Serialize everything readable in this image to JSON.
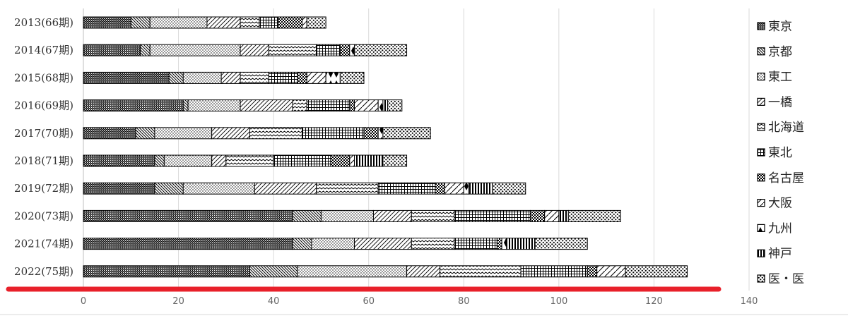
{
  "chart_data": {
    "type": "bar",
    "orientation": "horizontal",
    "stacked": true,
    "title": "",
    "xlabel": "",
    "ylabel": "",
    "xlim": [
      0,
      140
    ],
    "xticks": [
      0,
      20,
      40,
      60,
      80,
      100,
      120,
      140
    ],
    "grid": true,
    "legend_position": "right",
    "categories": [
      "2013(66期)",
      "2014(67期)",
      "2015(68期)",
      "2016(69期)",
      "2017(70期)",
      "2018(71期)",
      "2019(72期)",
      "2020(73期)",
      "2021(74期)",
      "2022(75期)"
    ],
    "series": [
      {
        "name": "東京",
        "pattern": "crosshatch-dense",
        "values": [
          10,
          12,
          18,
          21,
          11,
          15,
          15,
          44,
          44,
          35
        ]
      },
      {
        "name": "京都",
        "pattern": "diag-hatch",
        "values": [
          4,
          2,
          3,
          1,
          4,
          2,
          6,
          6,
          4,
          10
        ]
      },
      {
        "name": "東工",
        "pattern": "fine-dots",
        "values": [
          12,
          19,
          8,
          11,
          12,
          10,
          15,
          11,
          9,
          23
        ]
      },
      {
        "name": "一橋",
        "pattern": "back-diag",
        "values": [
          7,
          6,
          4,
          11,
          8,
          3,
          13,
          8,
          12,
          7
        ]
      },
      {
        "name": "北海道",
        "pattern": "wave",
        "values": [
          4,
          10,
          6,
          3,
          11,
          10,
          13,
          9,
          9,
          17
        ]
      },
      {
        "name": "東北",
        "pattern": "grid",
        "values": [
          4,
          5,
          6,
          9,
          13,
          12,
          12,
          16,
          9,
          14
        ]
      },
      {
        "name": "名古屋",
        "pattern": "checker",
        "values": [
          5,
          2,
          2,
          1,
          3,
          4,
          2,
          3,
          1,
          2
        ]
      },
      {
        "name": "大阪",
        "pattern": "open-diag",
        "values": [
          1,
          0,
          4,
          5,
          0,
          1,
          4,
          3,
          0,
          6
        ]
      },
      {
        "name": "九州",
        "pattern": "diamond",
        "values": [
          0,
          1,
          3,
          1,
          1,
          0,
          1,
          0,
          1,
          0
        ]
      },
      {
        "name": "神戸",
        "pattern": "vertical-stripes",
        "values": [
          0,
          0,
          0,
          1,
          0,
          6,
          5,
          2,
          6,
          0
        ]
      },
      {
        "name": "医・医",
        "pattern": "dots-bold",
        "values": [
          4,
          11,
          5,
          3,
          10,
          5,
          7,
          11,
          11,
          13
        ]
      }
    ]
  },
  "colors": {
    "background": "#ffffff",
    "gridline": "#d9d9d9",
    "bar_stroke": "#000000",
    "pattern_ink": "#000000",
    "red_underline": "#e8202a"
  }
}
